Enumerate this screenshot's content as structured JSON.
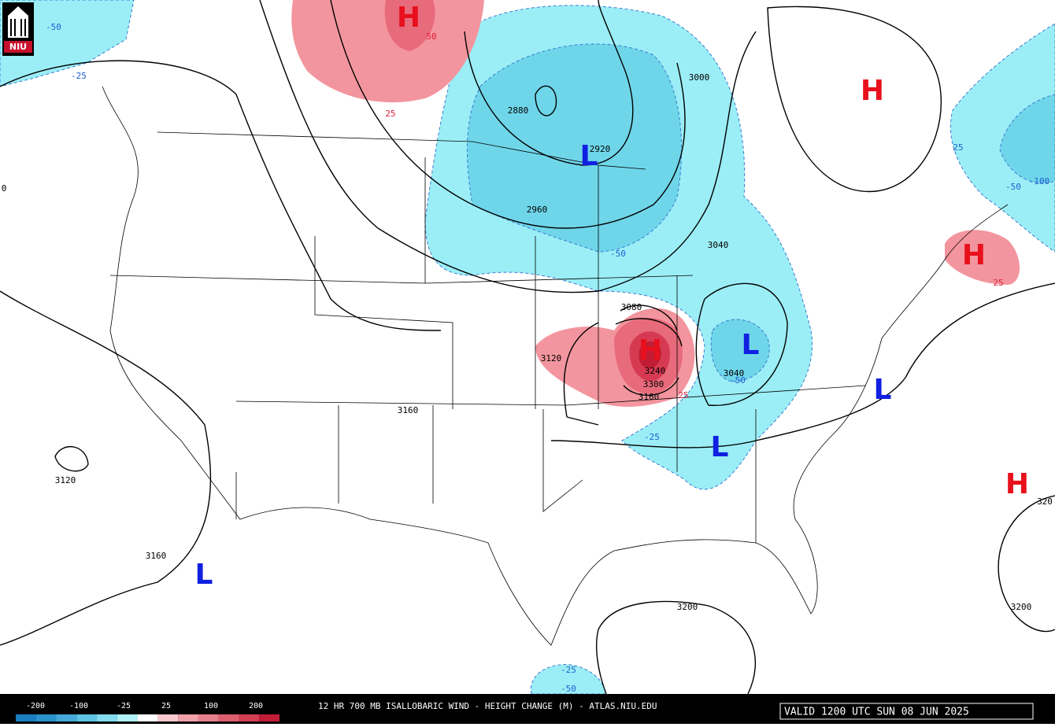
{
  "header": {
    "logo": "NIU"
  },
  "map": {
    "centers": [
      {
        "label": "H",
        "color": "#e8101c"
      },
      {
        "label": "H",
        "color": "#e8101c"
      },
      {
        "label": "H",
        "color": "#e8101c"
      },
      {
        "label": "H",
        "color": "#e8101c"
      },
      {
        "label": "H",
        "color": "#e8101c"
      },
      {
        "label": "L",
        "color": "#1020e0"
      },
      {
        "label": "L",
        "color": "#1020e0"
      },
      {
        "label": "L",
        "color": "#1020e0"
      },
      {
        "label": "L",
        "color": "#1020e0"
      },
      {
        "label": "L",
        "color": "#1020e0"
      }
    ],
    "height_labels": [
      "2880",
      "2920",
      "2960",
      "3000",
      "3040",
      "3040",
      "3080",
      "3120",
      "3120",
      "3160",
      "3160",
      "3160",
      "3200",
      "3200",
      "3240",
      "3300",
      "320",
      "0"
    ],
    "change_labels": [
      {
        "label": "-50",
        "color": "#1f5fd0"
      },
      {
        "label": "-25",
        "color": "#1f5fd0"
      },
      {
        "label": "50",
        "color": "#e0203a"
      },
      {
        "label": "25",
        "color": "#e0203a"
      },
      {
        "label": "-50",
        "color": "#1f5fd0"
      },
      {
        "label": "25",
        "color": "#1f5fd0"
      },
      {
        "label": "-100",
        "color": "#1f5fd0"
      },
      {
        "label": "-50",
        "color": "#1f5fd0"
      },
      {
        "label": "-50",
        "color": "#1f5fd0"
      },
      {
        "label": "-25",
        "color": "#1f5fd0"
      },
      {
        "label": "25",
        "color": "#e0203a"
      },
      {
        "label": "25",
        "color": "#e0203a"
      },
      {
        "label": "-25",
        "color": "#1f5fd0"
      },
      {
        "label": "-50",
        "color": "#1f5fd0"
      }
    ]
  },
  "legend": {
    "colors": [
      "#1a7fc0",
      "#2b93cc",
      "#44a9d8",
      "#5fc3e4",
      "#83dcee",
      "#b2f2f8",
      "#ffffff",
      "#f9c9ce",
      "#f1a1aa",
      "#e8808c",
      "#de5f6f",
      "#d23e52",
      "#c21d36"
    ],
    "labels": [
      "-200",
      "-100",
      "-25",
      "25",
      "100",
      "200"
    ]
  },
  "footer": {
    "title": "12 HR 700 MB ISALLOBARIC WIND - HEIGHT CHANGE (M) - ATLAS.NIU.EDU",
    "valid": "VALID 1200 UTC SUN 08 JUN 2025"
  }
}
